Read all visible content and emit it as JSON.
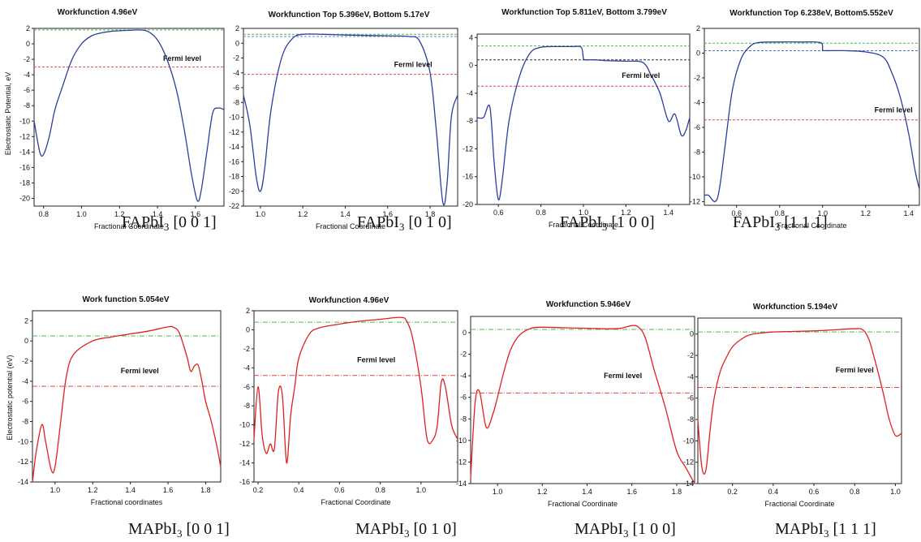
{
  "figure": {
    "top_ylabel": "Electrostatic Potential, eV",
    "bottom_ylabel": "Electrostatic potential (eV)",
    "captions": [
      {
        "prefix": "FAPbI",
        "sub": "3",
        "suffix": " [0 0 1]"
      },
      {
        "prefix": "FAPbI",
        "sub": "3",
        "suffix": " [0 1 0]"
      },
      {
        "prefix": "FAPbI",
        "sub": "3",
        "suffix": " [1 0 0]"
      },
      {
        "prefix": "FAPbI",
        "sub": "3",
        "suffix": " [1 1 1]"
      },
      {
        "prefix": "MAPbI",
        "sub": "3",
        "suffix": " [0 0 1]"
      },
      {
        "prefix": "MAPbI",
        "sub": "3",
        "suffix": " [0 1 0]"
      },
      {
        "prefix": "MAPbI",
        "sub": "3",
        "suffix": " [1 0 0]"
      },
      {
        "prefix": "MAPbI",
        "sub": "3",
        "suffix": " [1 1 1]"
      }
    ]
  },
  "chart_data": [
    {
      "type": "line",
      "title": "Workfunction  4.96eV",
      "xlabel": "Fractional Coordinate",
      "xlim": [
        0.75,
        1.75
      ],
      "ylim": [
        -21,
        2
      ],
      "xticks": [
        "0.8",
        "1.0",
        "1.2",
        "1.4",
        "1.6"
      ],
      "yticks": [
        "2",
        "0",
        "-2",
        "-4",
        "-6",
        "-8",
        "-10",
        "-12",
        "-14",
        "-16",
        "-18",
        "-20"
      ],
      "curve_color": "#2c3e9e",
      "series": [
        {
          "x": [
            0.75,
            0.78,
            0.8,
            0.83,
            0.86,
            0.9,
            0.95,
            1.0,
            1.05,
            1.1,
            1.15,
            1.2,
            1.25,
            1.3,
            1.35,
            1.4,
            1.45,
            1.5,
            1.54,
            1.58,
            1.61,
            1.63,
            1.66,
            1.69,
            1.72,
            1.75
          ],
          "y": [
            -10,
            -14,
            -14.3,
            -12,
            -8.5,
            -5.5,
            -2,
            0,
            1,
            1.4,
            1.6,
            1.7,
            1.75,
            1.8,
            1.6,
            0.5,
            -2,
            -6,
            -11,
            -17,
            -20.3,
            -19,
            -14,
            -9,
            -8.3,
            -8.5
          ]
        }
      ],
      "hlines": [
        {
          "y": 1.8,
          "color": "#4db84d",
          "dash": "3,2"
        },
        {
          "y": -3.0,
          "color": "#e04848",
          "dash": "3,2"
        }
      ],
      "annotation": {
        "text": "Fermi level",
        "x": 1.53,
        "y": -2.2
      }
    },
    {
      "type": "line",
      "title": "Workfunction Top 5.396eV, Bottom 5.17eV",
      "xlabel": "Fractional Coordinate",
      "xlim": [
        0.92,
        1.93
      ],
      "ylim": [
        -22,
        2
      ],
      "xticks": [
        "1.0",
        "1.2",
        "1.4",
        "1.6",
        "1.8"
      ],
      "yticks": [
        "2",
        "0",
        "-2",
        "-4",
        "-6",
        "-8",
        "-10",
        "-12",
        "-14",
        "-16",
        "-18",
        "-20",
        "-22"
      ],
      "curve_color": "#2c3e9e",
      "series": [
        {
          "x": [
            0.92,
            0.95,
            0.98,
            1.0,
            1.02,
            1.05,
            1.1,
            1.15,
            1.2,
            1.3,
            1.4,
            1.5,
            1.6,
            1.7,
            1.75,
            1.8,
            1.83,
            1.86,
            1.88,
            1.9,
            1.93
          ],
          "y": [
            -7,
            -11,
            -18,
            -20,
            -17,
            -9,
            -2,
            0.6,
            1.2,
            1.2,
            1.1,
            1.05,
            1.0,
            0.9,
            0.3,
            -4,
            -12,
            -21.5,
            -19,
            -10,
            -7
          ]
        }
      ],
      "hlines": [
        {
          "y": 1.2,
          "color": "#4db84d",
          "dash": "3,2"
        },
        {
          "y": 0.9,
          "color": "#6a8acb",
          "dash": "3,2"
        },
        {
          "y": -4.2,
          "color": "#e04848",
          "dash": "3,2"
        }
      ],
      "annotation": {
        "text": "Fermi level",
        "x": 1.72,
        "y": -3.2
      }
    },
    {
      "type": "line",
      "title": "Workfunction Top 5.811eV, Bottom 3.799eV",
      "xlabel": "Fractional  Coordinate",
      "xlim": [
        0.5,
        1.5
      ],
      "ylim": [
        -20,
        4.5
      ],
      "xticks": [
        "0.6",
        "0.8",
        "1.0",
        "1.2",
        "1.4"
      ],
      "yticks": [
        "4",
        "0",
        "-4",
        "-8",
        "-12",
        "-16",
        "-20"
      ],
      "curve_color": "#2c3e9e",
      "series": [
        {
          "x": [
            0.5,
            0.53,
            0.56,
            0.58,
            0.6,
            0.62,
            0.65,
            0.7,
            0.75,
            0.8,
            0.85,
            0.9,
            0.95,
            0.99,
            1.0,
            1.01,
            1.05,
            1.1,
            1.2,
            1.28,
            1.32,
            1.36,
            1.4,
            1.43,
            1.46,
            1.48,
            1.5
          ],
          "y": [
            -7.5,
            -7.5,
            -6,
            -14,
            -19.3,
            -16,
            -8,
            -1.5,
            1.8,
            2.6,
            2.7,
            2.7,
            2.7,
            2.6,
            1,
            0.8,
            0.8,
            0.7,
            0.6,
            0.4,
            -1.5,
            -4,
            -8,
            -7,
            -10,
            -9.5,
            -7.5
          ]
        }
      ],
      "hlines": [
        {
          "y": 2.8,
          "color": "#4db84d",
          "dash": "3,2"
        },
        {
          "y": 0.8,
          "color": "#333333",
          "dash": "3,2"
        },
        {
          "y": -3.0,
          "color": "#e04848",
          "dash": "3,2"
        }
      ],
      "annotation": {
        "text": "Fermi level",
        "x": 1.27,
        "y": -1.8
      }
    },
    {
      "type": "line",
      "title": "Workfunction Top 6.238eV, Bottom5.552eV",
      "xlabel": "Fractional Coordinate",
      "xlim": [
        0.45,
        1.45
      ],
      "ylim": [
        -12.3,
        2
      ],
      "xticks": [
        "0.6",
        "0.8",
        "1.0",
        "1.2",
        "1.4"
      ],
      "yticks": [
        "2",
        "0",
        "-2",
        "-4",
        "-6",
        "-8",
        "-10",
        "-12"
      ],
      "curve_color": "#2c3e9e",
      "series": [
        {
          "x": [
            0.45,
            0.47,
            0.5,
            0.52,
            0.55,
            0.58,
            0.62,
            0.66,
            0.7,
            0.8,
            0.9,
            0.99,
            1.0,
            1.01,
            1.1,
            1.2,
            1.28,
            1.32,
            1.36,
            1.4,
            1.43,
            1.45
          ],
          "y": [
            -11.5,
            -11.5,
            -12,
            -11,
            -7,
            -3,
            -0.5,
            0.5,
            0.85,
            0.9,
            0.9,
            0.85,
            0.25,
            0.2,
            0.2,
            0.1,
            -0.3,
            -1.5,
            -3.5,
            -6.5,
            -9.5,
            -11
          ]
        }
      ],
      "hlines": [
        {
          "y": 0.8,
          "color": "#4db84d",
          "dash": "3,2"
        },
        {
          "y": 0.2,
          "color": "#4a6ad0",
          "dash": "3,2"
        },
        {
          "y": -5.4,
          "color": "#e04848",
          "dash": "3,2"
        }
      ],
      "annotation": {
        "text": "Fermi level",
        "x": 1.33,
        "y": -4.8
      }
    },
    {
      "type": "line",
      "title": "Work function 5.054eV",
      "xlabel": "Fractional coordinates",
      "xlim": [
        0.88,
        1.88
      ],
      "ylim": [
        -14,
        3
      ],
      "xticks": [
        "1.0",
        "1.2",
        "1.4",
        "1.6",
        "1.8"
      ],
      "yticks": [
        "2",
        "0",
        "-2",
        "-4",
        "-6",
        "-8",
        "-10",
        "-12",
        "-14"
      ],
      "curve_color": "#e02020",
      "series": [
        {
          "x": [
            0.88,
            0.9,
            0.93,
            0.95,
            0.98,
            1.0,
            1.03,
            1.06,
            1.1,
            1.2,
            1.3,
            1.4,
            1.5,
            1.6,
            1.63,
            1.66,
            1.7,
            1.72,
            1.74,
            1.76,
            1.78,
            1.8,
            1.83,
            1.86,
            1.88
          ],
          "y": [
            -14,
            -11,
            -8.3,
            -10,
            -12.8,
            -12.5,
            -8,
            -3.5,
            -1.3,
            0,
            0.4,
            0.7,
            1,
            1.4,
            1.35,
            0.8,
            -1.5,
            -3,
            -2.5,
            -2.4,
            -4,
            -6,
            -8,
            -10.5,
            -12.5
          ]
        }
      ],
      "hlines": [
        {
          "y": 0.5,
          "color": "#4db84d",
          "dash": "6,2,1,2"
        },
        {
          "y": -4.5,
          "color": "#e04848",
          "dash": "6,2,1,2"
        }
      ],
      "annotation": {
        "text": "Fermi level",
        "x": 1.45,
        "y": -3.2
      }
    },
    {
      "type": "line",
      "title": "Workfunction 4.96eV",
      "xlabel": "Fractional Coordinate",
      "xlim": [
        0.18,
        1.18
      ],
      "ylim": [
        -16,
        2
      ],
      "xticks": [
        "0.2",
        "0.4",
        "0.6",
        "0.8",
        "1.0"
      ],
      "yticks": [
        "2",
        "0",
        "-2",
        "-4",
        "-6",
        "-8",
        "-10",
        "-12",
        "-14",
        "-16"
      ],
      "curve_color": "#e02020",
      "series": [
        {
          "x": [
            0.18,
            0.2,
            0.22,
            0.24,
            0.26,
            0.28,
            0.3,
            0.32,
            0.34,
            0.36,
            0.38,
            0.4,
            0.45,
            0.5,
            0.6,
            0.7,
            0.8,
            0.9,
            0.93,
            0.96,
            1.0,
            1.03,
            1.06,
            1.08,
            1.1,
            1.12,
            1.15,
            1.18
          ],
          "y": [
            -11.5,
            -6,
            -11,
            -13,
            -12,
            -12.5,
            -6.5,
            -7,
            -14,
            -9,
            -6,
            -3,
            -0.5,
            0.2,
            0.6,
            0.9,
            1.1,
            1.3,
            0.9,
            -1,
            -6,
            -11.5,
            -11.5,
            -10,
            -5.5,
            -6,
            -10,
            -11.5
          ]
        }
      ],
      "hlines": [
        {
          "y": 0.8,
          "color": "#4db84d",
          "dash": "6,2,1,2"
        },
        {
          "y": -4.8,
          "color": "#e04848",
          "dash": "6,2,1,2"
        }
      ],
      "annotation": {
        "text": "Fermi level",
        "x": 0.78,
        "y": -3.4
      }
    },
    {
      "type": "line",
      "title": "Workfunction 5.946eV",
      "xlabel": "Fractional  Coordinate",
      "xlim": [
        0.88,
        1.88
      ],
      "ylim": [
        -14,
        1.5
      ],
      "xticks": [
        "1.0",
        "1.2",
        "1.4",
        "1.6",
        "1.8"
      ],
      "yticks": [
        "0",
        "-2",
        "-4",
        "-6",
        "-8",
        "-10",
        "-12",
        "-14"
      ],
      "curve_color": "#e02020",
      "series": [
        {
          "x": [
            0.88,
            0.9,
            0.92,
            0.95,
            0.98,
            1.0,
            1.03,
            1.06,
            1.1,
            1.15,
            1.2,
            1.3,
            1.4,
            1.5,
            1.55,
            1.6,
            1.63,
            1.66,
            1.7,
            1.75,
            1.8,
            1.84,
            1.88
          ],
          "y": [
            -13.5,
            -6.5,
            -5.5,
            -8.8,
            -7.5,
            -6,
            -3.5,
            -1.5,
            -0.2,
            0.4,
            0.5,
            0.45,
            0.4,
            0.35,
            0.4,
            0.65,
            0.5,
            -0.5,
            -3.5,
            -7,
            -11,
            -12.5,
            -14
          ]
        }
      ],
      "hlines": [
        {
          "y": 0.3,
          "color": "#4db84d",
          "dash": "6,2,1,2"
        },
        {
          "y": -5.6,
          "color": "#e04848",
          "dash": "6,2,1,2"
        }
      ],
      "annotation": {
        "text": "Fermi level",
        "x": 1.56,
        "y": -4.2
      }
    },
    {
      "type": "line",
      "title": "Workfunction 5.194eV",
      "xlabel": "Fractional Coordinate",
      "xlim": [
        0.03,
        1.03
      ],
      "ylim": [
        -14,
        1.5
      ],
      "xticks": [
        "0.2",
        "0.4",
        "0.6",
        "0.8",
        "1.0"
      ],
      "yticks": [
        "0",
        "-2",
        "-4",
        "-6",
        "-8",
        "-10",
        "-12",
        "-14"
      ],
      "curve_color": "#e02020",
      "series": [
        {
          "x": [
            0.03,
            0.05,
            0.07,
            0.09,
            0.11,
            0.14,
            0.17,
            0.2,
            0.25,
            0.3,
            0.4,
            0.5,
            0.6,
            0.7,
            0.8,
            0.84,
            0.87,
            0.9,
            0.94,
            0.97,
            1.0,
            1.03
          ],
          "y": [
            -8,
            -12.5,
            -12.7,
            -9,
            -6,
            -3.5,
            -2.2,
            -1.2,
            -0.4,
            0,
            0.2,
            0.25,
            0.3,
            0.4,
            0.5,
            0.4,
            -0.5,
            -2.5,
            -5.5,
            -8,
            -9.5,
            -9.3
          ]
        }
      ],
      "hlines": [
        {
          "y": 0.2,
          "color": "#4db84d",
          "dash": "6,2,1,2"
        },
        {
          "y": -5.0,
          "color": "#e04848",
          "dash": "6,2,1,2"
        }
      ],
      "annotation": {
        "text": "Fermi level",
        "x": 0.8,
        "y": -3.6
      }
    }
  ]
}
